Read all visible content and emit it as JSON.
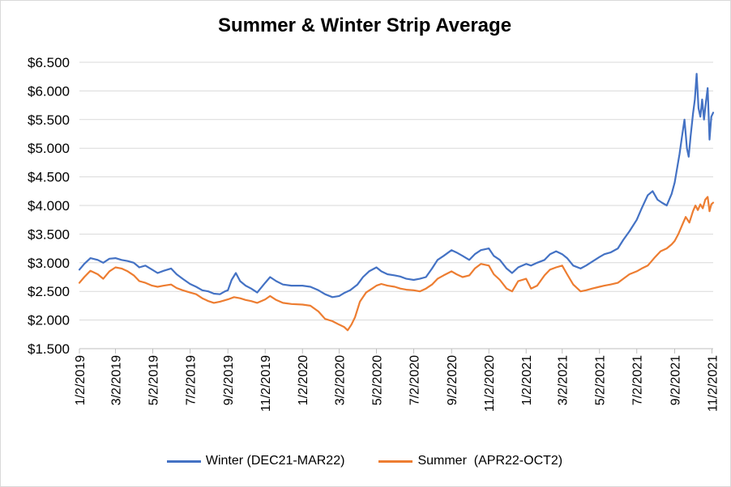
{
  "chart_data": {
    "type": "line",
    "title": "Summer & Winter Strip Average",
    "xlabel": "",
    "ylabel": "",
    "x_tick_labels": [
      "1/2/2019",
      "3/2/2019",
      "5/2/2019",
      "7/2/2019",
      "9/2/2019",
      "11/2/2019",
      "1/2/2020",
      "3/2/2020",
      "5/2/2020",
      "7/2/2020",
      "9/2/2020",
      "11/2/2020",
      "1/2/2021",
      "3/2/2021",
      "5/2/2021",
      "7/2/2021",
      "9/2/2021",
      "11/2/2021"
    ],
    "y_tick_labels": [
      "$1.500",
      "$2.000",
      "$2.500",
      "$3.000",
      "$3.500",
      "$4.000",
      "$4.500",
      "$5.000",
      "$5.500",
      "$6.000",
      "$6.500"
    ],
    "ylim": [
      1.5,
      6.5
    ],
    "xlim": [
      "2019-01-02",
      "2021-11-04"
    ],
    "grid": "horizontal",
    "legend_position": "bottom",
    "series": [
      {
        "name": "Winter (DEC21-MAR22)",
        "color": "#4472c4",
        "points": [
          [
            "2019-01-02",
            2.88
          ],
          [
            "2019-01-10",
            2.98
          ],
          [
            "2019-01-20",
            3.08
          ],
          [
            "2019-02-01",
            3.05
          ],
          [
            "2019-02-10",
            3.0
          ],
          [
            "2019-02-20",
            3.07
          ],
          [
            "2019-03-02",
            3.08
          ],
          [
            "2019-03-12",
            3.05
          ],
          [
            "2019-03-22",
            3.03
          ],
          [
            "2019-04-01",
            3.0
          ],
          [
            "2019-04-10",
            2.92
          ],
          [
            "2019-04-20",
            2.95
          ],
          [
            "2019-05-01",
            2.88
          ],
          [
            "2019-05-10",
            2.82
          ],
          [
            "2019-05-20",
            2.86
          ],
          [
            "2019-06-01",
            2.9
          ],
          [
            "2019-06-10",
            2.8
          ],
          [
            "2019-06-20",
            2.72
          ],
          [
            "2019-07-02",
            2.63
          ],
          [
            "2019-07-12",
            2.58
          ],
          [
            "2019-07-22",
            2.52
          ],
          [
            "2019-08-01",
            2.5
          ],
          [
            "2019-08-10",
            2.46
          ],
          [
            "2019-08-20",
            2.45
          ],
          [
            "2019-08-28",
            2.5
          ],
          [
            "2019-09-02",
            2.52
          ],
          [
            "2019-09-08",
            2.7
          ],
          [
            "2019-09-15",
            2.82
          ],
          [
            "2019-09-22",
            2.68
          ],
          [
            "2019-10-01",
            2.6
          ],
          [
            "2019-10-10",
            2.55
          ],
          [
            "2019-10-20",
            2.48
          ],
          [
            "2019-11-02",
            2.65
          ],
          [
            "2019-11-10",
            2.75
          ],
          [
            "2019-11-20",
            2.68
          ],
          [
            "2019-12-01",
            2.62
          ],
          [
            "2019-12-15",
            2.6
          ],
          [
            "2020-01-02",
            2.6
          ],
          [
            "2020-01-15",
            2.58
          ],
          [
            "2020-01-28",
            2.52
          ],
          [
            "2020-02-08",
            2.45
          ],
          [
            "2020-02-20",
            2.4
          ],
          [
            "2020-03-02",
            2.42
          ],
          [
            "2020-03-10",
            2.47
          ],
          [
            "2020-03-20",
            2.52
          ],
          [
            "2020-04-01",
            2.62
          ],
          [
            "2020-04-10",
            2.75
          ],
          [
            "2020-04-20",
            2.85
          ],
          [
            "2020-05-02",
            2.92
          ],
          [
            "2020-05-10",
            2.85
          ],
          [
            "2020-05-20",
            2.8
          ],
          [
            "2020-06-01",
            2.78
          ],
          [
            "2020-06-10",
            2.76
          ],
          [
            "2020-06-20",
            2.72
          ],
          [
            "2020-07-02",
            2.7
          ],
          [
            "2020-07-12",
            2.72
          ],
          [
            "2020-07-22",
            2.75
          ],
          [
            "2020-08-01",
            2.9
          ],
          [
            "2020-08-10",
            3.05
          ],
          [
            "2020-08-20",
            3.12
          ],
          [
            "2020-09-02",
            3.22
          ],
          [
            "2020-09-10",
            3.18
          ],
          [
            "2020-09-20",
            3.12
          ],
          [
            "2020-10-01",
            3.05
          ],
          [
            "2020-10-10",
            3.15
          ],
          [
            "2020-10-20",
            3.22
          ],
          [
            "2020-11-02",
            3.25
          ],
          [
            "2020-11-10",
            3.12
          ],
          [
            "2020-11-20",
            3.05
          ],
          [
            "2020-12-01",
            2.9
          ],
          [
            "2020-12-10",
            2.82
          ],
          [
            "2020-12-20",
            2.92
          ],
          [
            "2021-01-02",
            2.98
          ],
          [
            "2021-01-10",
            2.95
          ],
          [
            "2021-01-20",
            3.0
          ],
          [
            "2021-02-01",
            3.05
          ],
          [
            "2021-02-10",
            3.15
          ],
          [
            "2021-02-20",
            3.2
          ],
          [
            "2021-03-02",
            3.15
          ],
          [
            "2021-03-10",
            3.08
          ],
          [
            "2021-03-20",
            2.95
          ],
          [
            "2021-04-01",
            2.9
          ],
          [
            "2021-04-10",
            2.95
          ],
          [
            "2021-04-20",
            3.02
          ],
          [
            "2021-05-02",
            3.1
          ],
          [
            "2021-05-10",
            3.15
          ],
          [
            "2021-05-20",
            3.18
          ],
          [
            "2021-06-01",
            3.25
          ],
          [
            "2021-06-10",
            3.4
          ],
          [
            "2021-06-20",
            3.55
          ],
          [
            "2021-07-02",
            3.75
          ],
          [
            "2021-07-10",
            3.95
          ],
          [
            "2021-07-20",
            4.18
          ],
          [
            "2021-07-28",
            4.25
          ],
          [
            "2021-08-05",
            4.1
          ],
          [
            "2021-08-12",
            4.05
          ],
          [
            "2021-08-20",
            4.0
          ],
          [
            "2021-08-28",
            4.2
          ],
          [
            "2021-09-02",
            4.4
          ],
          [
            "2021-09-06",
            4.65
          ],
          [
            "2021-09-10",
            4.9
          ],
          [
            "2021-09-14",
            5.2
          ],
          [
            "2021-09-18",
            5.5
          ],
          [
            "2021-09-22",
            5.0
          ],
          [
            "2021-09-25",
            4.85
          ],
          [
            "2021-09-28",
            5.2
          ],
          [
            "2021-10-02",
            5.6
          ],
          [
            "2021-10-05",
            5.85
          ],
          [
            "2021-10-08",
            6.3
          ],
          [
            "2021-10-11",
            5.7
          ],
          [
            "2021-10-14",
            5.55
          ],
          [
            "2021-10-17",
            5.85
          ],
          [
            "2021-10-20",
            5.5
          ],
          [
            "2021-10-23",
            5.8
          ],
          [
            "2021-10-26",
            6.05
          ],
          [
            "2021-10-29",
            5.15
          ],
          [
            "2021-11-01",
            5.55
          ],
          [
            "2021-11-04",
            5.62
          ]
        ]
      },
      {
        "name": "Summer  (APR22-OCT2)",
        "color": "#ed7d31",
        "points": [
          [
            "2019-01-02",
            2.65
          ],
          [
            "2019-01-10",
            2.75
          ],
          [
            "2019-01-20",
            2.86
          ],
          [
            "2019-02-01",
            2.8
          ],
          [
            "2019-02-10",
            2.72
          ],
          [
            "2019-02-20",
            2.85
          ],
          [
            "2019-03-02",
            2.92
          ],
          [
            "2019-03-12",
            2.9
          ],
          [
            "2019-03-22",
            2.85
          ],
          [
            "2019-04-01",
            2.78
          ],
          [
            "2019-04-10",
            2.68
          ],
          [
            "2019-04-20",
            2.65
          ],
          [
            "2019-05-01",
            2.6
          ],
          [
            "2019-05-10",
            2.58
          ],
          [
            "2019-05-20",
            2.6
          ],
          [
            "2019-06-01",
            2.62
          ],
          [
            "2019-06-10",
            2.56
          ],
          [
            "2019-06-20",
            2.52
          ],
          [
            "2019-07-02",
            2.48
          ],
          [
            "2019-07-12",
            2.45
          ],
          [
            "2019-07-22",
            2.38
          ],
          [
            "2019-08-01",
            2.33
          ],
          [
            "2019-08-10",
            2.3
          ],
          [
            "2019-08-20",
            2.32
          ],
          [
            "2019-09-02",
            2.36
          ],
          [
            "2019-09-12",
            2.4
          ],
          [
            "2019-09-22",
            2.38
          ],
          [
            "2019-10-01",
            2.35
          ],
          [
            "2019-10-10",
            2.33
          ],
          [
            "2019-10-20",
            2.3
          ],
          [
            "2019-11-02",
            2.36
          ],
          [
            "2019-11-10",
            2.42
          ],
          [
            "2019-11-20",
            2.35
          ],
          [
            "2019-12-01",
            2.3
          ],
          [
            "2019-12-15",
            2.28
          ],
          [
            "2020-01-02",
            2.27
          ],
          [
            "2020-01-15",
            2.25
          ],
          [
            "2020-01-28",
            2.15
          ],
          [
            "2020-02-08",
            2.02
          ],
          [
            "2020-02-20",
            1.98
          ],
          [
            "2020-03-02",
            1.92
          ],
          [
            "2020-03-10",
            1.88
          ],
          [
            "2020-03-16",
            1.82
          ],
          [
            "2020-03-22",
            1.92
          ],
          [
            "2020-03-28",
            2.05
          ],
          [
            "2020-04-05",
            2.32
          ],
          [
            "2020-04-15",
            2.48
          ],
          [
            "2020-04-25",
            2.55
          ],
          [
            "2020-05-02",
            2.6
          ],
          [
            "2020-05-10",
            2.63
          ],
          [
            "2020-05-20",
            2.6
          ],
          [
            "2020-06-01",
            2.58
          ],
          [
            "2020-06-10",
            2.55
          ],
          [
            "2020-06-20",
            2.53
          ],
          [
            "2020-07-02",
            2.52
          ],
          [
            "2020-07-12",
            2.5
          ],
          [
            "2020-07-22",
            2.55
          ],
          [
            "2020-08-01",
            2.62
          ],
          [
            "2020-08-10",
            2.72
          ],
          [
            "2020-08-20",
            2.78
          ],
          [
            "2020-09-02",
            2.85
          ],
          [
            "2020-09-10",
            2.8
          ],
          [
            "2020-09-20",
            2.75
          ],
          [
            "2020-10-01",
            2.78
          ],
          [
            "2020-10-10",
            2.9
          ],
          [
            "2020-10-20",
            2.98
          ],
          [
            "2020-11-02",
            2.95
          ],
          [
            "2020-11-10",
            2.8
          ],
          [
            "2020-11-20",
            2.7
          ],
          [
            "2020-12-01",
            2.55
          ],
          [
            "2020-12-10",
            2.5
          ],
          [
            "2020-12-20",
            2.68
          ],
          [
            "2021-01-02",
            2.72
          ],
          [
            "2021-01-10",
            2.55
          ],
          [
            "2021-01-20",
            2.6
          ],
          [
            "2021-02-01",
            2.78
          ],
          [
            "2021-02-10",
            2.88
          ],
          [
            "2021-02-20",
            2.92
          ],
          [
            "2021-03-02",
            2.95
          ],
          [
            "2021-03-10",
            2.8
          ],
          [
            "2021-03-20",
            2.62
          ],
          [
            "2021-04-01",
            2.5
          ],
          [
            "2021-04-10",
            2.52
          ],
          [
            "2021-04-20",
            2.55
          ],
          [
            "2021-05-02",
            2.58
          ],
          [
            "2021-05-10",
            2.6
          ],
          [
            "2021-05-20",
            2.62
          ],
          [
            "2021-06-01",
            2.65
          ],
          [
            "2021-06-10",
            2.72
          ],
          [
            "2021-06-20",
            2.8
          ],
          [
            "2021-07-02",
            2.85
          ],
          [
            "2021-07-10",
            2.9
          ],
          [
            "2021-07-20",
            2.95
          ],
          [
            "2021-08-01",
            3.1
          ],
          [
            "2021-08-10",
            3.2
          ],
          [
            "2021-08-20",
            3.25
          ],
          [
            "2021-08-28",
            3.32
          ],
          [
            "2021-09-02",
            3.38
          ],
          [
            "2021-09-08",
            3.5
          ],
          [
            "2021-09-14",
            3.65
          ],
          [
            "2021-09-20",
            3.8
          ],
          [
            "2021-09-26",
            3.7
          ],
          [
            "2021-10-02",
            3.9
          ],
          [
            "2021-10-06",
            4.0
          ],
          [
            "2021-10-10",
            3.92
          ],
          [
            "2021-10-14",
            4.02
          ],
          [
            "2021-10-18",
            3.95
          ],
          [
            "2021-10-22",
            4.1
          ],
          [
            "2021-10-26",
            4.15
          ],
          [
            "2021-10-29",
            3.9
          ],
          [
            "2021-11-01",
            4.02
          ],
          [
            "2021-11-04",
            4.05
          ]
        ]
      }
    ]
  }
}
